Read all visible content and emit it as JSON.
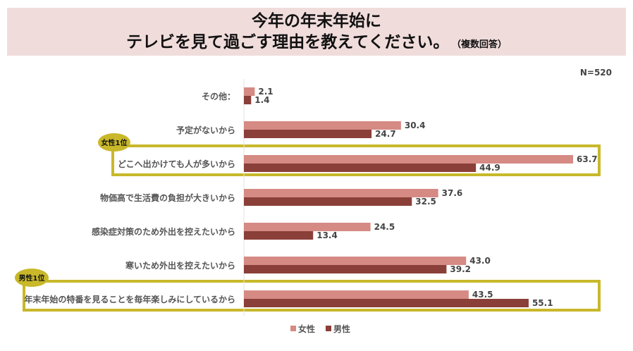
{
  "title_line1": "今年の年末年始に",
  "title_line2": "テレビを見て過ごす理由を教えてください。",
  "title_note": "（複数回答）",
  "sample_size": "N=520",
  "colors": {
    "female": "#d68a84",
    "male": "#8b3f39",
    "highlight": "#c8b82a",
    "title_bg": "#f1dcdc"
  },
  "highlights": [
    {
      "category_index": 2,
      "badge": "女性1位"
    },
    {
      "category_index": 6,
      "badge": "男性1位"
    }
  ],
  "chart_data": {
    "type": "bar",
    "orientation": "horizontal",
    "categories": [
      "その他：",
      "予定がないから",
      "どこへ出かけても人が多いから",
      "物価高で生活費の負担が大きいから",
      "感染症対策のため外出を控えたいから",
      "寒いため外出を控えたいから",
      "年末年始の特番を見ることを毎年楽しみにしているから"
    ],
    "series": [
      {
        "name": "女性",
        "values": [
          2.1,
          30.4,
          63.7,
          37.6,
          24.5,
          43.0,
          43.5
        ]
      },
      {
        "name": "男性",
        "values": [
          1.4,
          24.7,
          44.9,
          32.5,
          13.4,
          39.2,
          55.1
        ]
      }
    ],
    "xlim": [
      0,
      63.7
    ],
    "legend": "bottom",
    "grid": false
  }
}
